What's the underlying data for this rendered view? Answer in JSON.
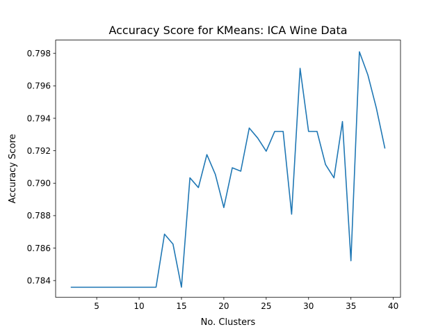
{
  "chart_data": {
    "type": "line",
    "title": "Accuracy Score for KMeans: ICA Wine Data",
    "xlabel": "No. Clusters",
    "ylabel": "Accuracy Score",
    "xlim": [
      0.15,
      40.85
    ],
    "ylim": [
      0.78297,
      0.79882
    ],
    "x_ticks": [
      5,
      10,
      15,
      20,
      25,
      30,
      35,
      40
    ],
    "y_ticks": [
      0.784,
      0.786,
      0.788,
      0.79,
      0.792,
      0.794,
      0.796,
      0.798
    ],
    "y_tick_labels": [
      "0.784",
      "0.786",
      "0.788",
      "0.790",
      "0.792",
      "0.794",
      "0.796",
      "0.798"
    ],
    "grid": false,
    "series": [
      {
        "color": "#1f77b4",
        "x": [
          2,
          3,
          4,
          5,
          6,
          7,
          8,
          9,
          10,
          11,
          12,
          13,
          14,
          15,
          16,
          17,
          18,
          19,
          20,
          21,
          22,
          23,
          24,
          25,
          26,
          27,
          28,
          29,
          30,
          31,
          32,
          33,
          34,
          35,
          36,
          37,
          38,
          39
        ],
        "values": [
          0.78359,
          0.78359,
          0.78359,
          0.78359,
          0.78359,
          0.78359,
          0.78359,
          0.78359,
          0.78359,
          0.78359,
          0.78359,
          0.78686,
          0.78625,
          0.78359,
          0.79033,
          0.78973,
          0.79176,
          0.79054,
          0.7885,
          0.79095,
          0.79074,
          0.7934,
          0.79278,
          0.79197,
          0.79319,
          0.79319,
          0.78809,
          0.79708,
          0.79319,
          0.79319,
          0.79115,
          0.79033,
          0.7938,
          0.78522,
          0.7981,
          0.79667,
          0.79463,
          0.79217
        ]
      }
    ]
  }
}
